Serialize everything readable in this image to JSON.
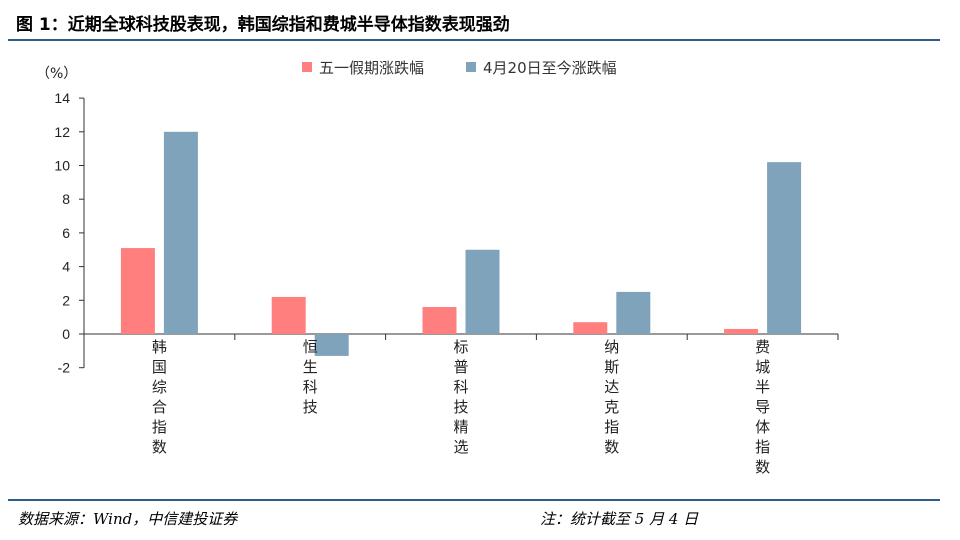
{
  "figure": {
    "title": "图 1：近期全球科技股表现，韩国综指和费城半导体指数表现强劲"
  },
  "footer": {
    "source": "数据来源：Wind，中信建投证券",
    "note": "注：统计截至 5 月 4 日"
  },
  "colors": {
    "series1": "#ff7f7f",
    "series2": "#7fa3ba",
    "rule": "#2b5d8a",
    "axis": "#333333"
  },
  "chart_data": {
    "type": "bar",
    "title": "",
    "unit_label": "（%）",
    "xlabel": "",
    "ylabel": "",
    "ylim": [
      -2,
      14
    ],
    "yticks": [
      -2,
      0,
      2,
      4,
      6,
      8,
      10,
      12,
      14
    ],
    "grid": false,
    "legend_position": "top",
    "categories": [
      "韩国综合指数",
      "恒生科技",
      "标普科技精选",
      "纳斯达克指数",
      "费城半导体指数"
    ],
    "series": [
      {
        "name": "五一假期涨跌幅",
        "values": [
          5.1,
          2.2,
          1.6,
          0.7,
          0.3
        ]
      },
      {
        "name": "4月20日至今涨跌幅",
        "values": [
          12.0,
          -1.3,
          5.0,
          2.5,
          10.2
        ]
      }
    ]
  }
}
